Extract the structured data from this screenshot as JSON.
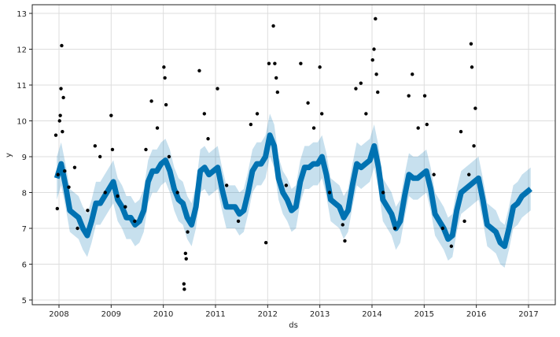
{
  "chart_data": {
    "type": "line",
    "xlabel": "ds",
    "ylabel": "y",
    "xlim": [
      "2007-06-15",
      "2017-07-15"
    ],
    "ylim": [
      4.9,
      13.25
    ],
    "grid": true,
    "x_ticks": [
      "2008",
      "2009",
      "2010",
      "2011",
      "2012",
      "2013",
      "2014",
      "2015",
      "2016",
      "2017"
    ],
    "y_ticks": [
      "5",
      "6",
      "7",
      "8",
      "9",
      "10",
      "11",
      "12",
      "13"
    ],
    "colors": {
      "forecast": "#0072B2",
      "interval": "#0072B2",
      "observed": "#000000"
    },
    "forecast_start": "2007-12",
    "yhat_monthly": {
      "2007": [
        null,
        null,
        null,
        null,
        null,
        null,
        null,
        null,
        null,
        null,
        null,
        8.4
      ],
      "2008": [
        8.8,
        8.2,
        7.5,
        7.4,
        7.3,
        7.0,
        6.8,
        7.2,
        7.7,
        7.7,
        7.9,
        8.1
      ],
      "2009": [
        8.3,
        7.8,
        7.6,
        7.3,
        7.3,
        7.1,
        7.2,
        7.5,
        8.3,
        8.6,
        8.6,
        8.8
      ],
      "2010": [
        8.9,
        8.6,
        8.1,
        7.8,
        7.7,
        7.3,
        7.1,
        7.6,
        8.6,
        8.7,
        8.5,
        8.6
      ],
      "2011": [
        8.7,
        8.1,
        7.6,
        7.6,
        7.6,
        7.4,
        7.5,
        8.0,
        8.6,
        8.8,
        8.8,
        9.0
      ],
      "2012": [
        9.6,
        9.3,
        8.4,
        8.0,
        7.8,
        7.5,
        7.6,
        8.3,
        8.7,
        8.7,
        8.8,
        8.8
      ],
      "2013": [
        9.0,
        8.5,
        7.8,
        7.7,
        7.6,
        7.3,
        7.5,
        8.2,
        8.8,
        8.7,
        8.8,
        8.9
      ],
      "2014": [
        9.3,
        8.7,
        7.8,
        7.6,
        7.4,
        7.0,
        7.2,
        7.9,
        8.5,
        8.4,
        8.4,
        8.5
      ],
      "2015": [
        8.6,
        8.1,
        7.4,
        7.2,
        7.0,
        6.7,
        6.8,
        7.5,
        8.0,
        8.1,
        8.2,
        8.3
      ],
      "2016": [
        8.4,
        7.8,
        7.1,
        7.0,
        6.9,
        6.6,
        6.5,
        7.0,
        7.6,
        7.7,
        7.9,
        8.0
      ],
      "2017": [
        8.1
      ]
    },
    "interval_halfwidth": 0.6,
    "observed": [
      [
        "2007-12-10",
        9.6
      ],
      [
        "2007-12-20",
        7.55
      ],
      [
        "2007-12-25",
        8.5
      ],
      [
        "2008-01-05",
        10.0
      ],
      [
        "2008-01-10",
        10.15
      ],
      [
        "2008-01-20",
        12.1
      ],
      [
        "2008-01-15",
        10.9
      ],
      [
        "2008-02-01",
        10.65
      ],
      [
        "2008-01-25",
        9.7
      ],
      [
        "2008-02-10",
        8.6
      ],
      [
        "2008-03-10",
        8.15
      ],
      [
        "2008-04-20",
        8.7
      ],
      [
        "2008-05-10",
        7.0
      ],
      [
        "2008-07-20",
        7.5
      ],
      [
        "2008-09-10",
        9.3
      ],
      [
        "2008-10-15",
        9.0
      ],
      [
        "2008-11-20",
        8.0
      ],
      [
        "2009-01-01",
        10.15
      ],
      [
        "2009-01-10",
        9.2
      ],
      [
        "2009-02-15",
        7.9
      ],
      [
        "2009-04-10",
        7.6
      ],
      [
        "2009-06-15",
        7.2
      ],
      [
        "2009-09-01",
        9.2
      ],
      [
        "2009-10-10",
        10.55
      ],
      [
        "2009-11-20",
        9.8
      ],
      [
        "2010-01-05",
        11.5
      ],
      [
        "2010-01-12",
        11.2
      ],
      [
        "2010-01-20",
        10.45
      ],
      [
        "2010-02-10",
        9.0
      ],
      [
        "2010-04-10",
        8.0
      ],
      [
        "2010-05-25",
        5.45
      ],
      [
        "2010-05-28",
        5.3
      ],
      [
        "2010-06-05",
        6.3
      ],
      [
        "2010-06-10",
        6.15
      ],
      [
        "2010-06-20",
        6.9
      ],
      [
        "2010-09-10",
        11.4
      ],
      [
        "2010-10-15",
        10.2
      ],
      [
        "2010-11-10",
        9.5
      ],
      [
        "2011-01-15",
        10.9
      ],
      [
        "2011-03-20",
        8.2
      ],
      [
        "2011-06-10",
        7.2
      ],
      [
        "2011-09-05",
        9.9
      ],
      [
        "2011-10-20",
        10.2
      ],
      [
        "2011-12-20",
        6.6
      ],
      [
        "2012-01-10",
        11.6
      ],
      [
        "2012-02-10",
        12.65
      ],
      [
        "2012-02-20",
        11.6
      ],
      [
        "2012-03-01",
        11.2
      ],
      [
        "2012-03-10",
        10.8
      ],
      [
        "2012-05-10",
        8.2
      ],
      [
        "2012-08-20",
        11.6
      ],
      [
        "2012-10-10",
        10.5
      ],
      [
        "2012-11-20",
        9.8
      ],
      [
        "2013-01-01",
        11.5
      ],
      [
        "2013-01-15",
        10.2
      ],
      [
        "2013-03-10",
        8.0
      ],
      [
        "2013-06-10",
        7.1
      ],
      [
        "2013-06-25",
        6.65
      ],
      [
        "2013-09-10",
        10.9
      ],
      [
        "2013-10-15",
        11.05
      ],
      [
        "2013-11-20",
        10.2
      ],
      [
        "2014-01-05",
        11.7
      ],
      [
        "2014-01-15",
        12.0
      ],
      [
        "2014-01-25",
        12.85
      ],
      [
        "2014-02-01",
        11.3
      ],
      [
        "2014-02-10",
        10.8
      ],
      [
        "2014-03-20",
        8.0
      ],
      [
        "2014-06-10",
        7.0
      ],
      [
        "2014-09-15",
        10.7
      ],
      [
        "2014-10-10",
        11.3
      ],
      [
        "2014-11-20",
        9.8
      ],
      [
        "2015-01-05",
        10.7
      ],
      [
        "2015-01-20",
        9.9
      ],
      [
        "2015-03-10",
        8.5
      ],
      [
        "2015-05-10",
        7.0
      ],
      [
        "2015-07-10",
        6.5
      ],
      [
        "2015-09-15",
        9.7
      ],
      [
        "2015-11-25",
        12.15
      ],
      [
        "2015-12-01",
        11.5
      ],
      [
        "2015-12-25",
        10.35
      ],
      [
        "2015-12-15",
        9.3
      ],
      [
        "2015-11-10",
        8.5
      ],
      [
        "2015-10-10",
        7.2
      ]
    ]
  }
}
